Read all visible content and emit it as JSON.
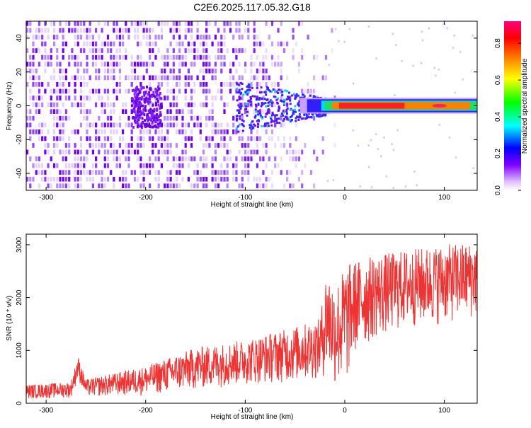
{
  "title": "C2E6.2025.117.05.32.G18",
  "chart_data": [
    {
      "type": "heatmap",
      "xlabel": "Height of straight line (km)",
      "ylabel": "Frequency (Hz)",
      "xlim": [
        -320,
        133
      ],
      "ylim": [
        -50,
        50
      ],
      "x_ticks": [
        -300,
        -200,
        -100,
        0,
        100
      ],
      "y_ticks": [
        -40,
        -20,
        0,
        20,
        40
      ],
      "colorbar": {
        "label": "Normalized spectral amplitude",
        "range": [
          0,
          0.92
        ],
        "ticks": [
          0.0,
          0.2,
          0.4,
          0.6,
          0.8
        ],
        "colormap": [
          "#ffffff",
          "#8000ff",
          "#0000ff",
          "#00ffff",
          "#00ff00",
          "#ffff00",
          "#ff8000",
          "#ff0000",
          "#ff0080"
        ]
      },
      "features": {
        "noise_region_x": [
          -320,
          -20
        ],
        "carrier_band_y": [
          -3,
          3
        ],
        "carrier_start_x": -45,
        "strong_carrier_x": [
          -20,
          133
        ],
        "peak_amplitude_near_x": 95
      }
    },
    {
      "type": "line",
      "xlabel": "Height of straight line (km)",
      "ylabel": "SNR (10 * v/v)",
      "xlim": [
        -320,
        133
      ],
      "ylim": [
        0,
        3200
      ],
      "x_ticks": [
        -300,
        -200,
        -100,
        0,
        100
      ],
      "y_ticks": [
        0,
        1000,
        2000,
        3000
      ],
      "color": "#ee3333",
      "envelope": {
        "x": [
          -320,
          -275,
          -268,
          -260,
          -200,
          -150,
          -100,
          -50,
          -25,
          -18,
          -10,
          0,
          10,
          30,
          60,
          100,
          133
        ],
        "low": [
          80,
          100,
          450,
          120,
          150,
          250,
          350,
          400,
          450,
          500,
          300,
          200,
          900,
          1200,
          1400,
          1500,
          1600
        ],
        "high": [
          350,
          400,
          900,
          450,
          700,
          1050,
          1200,
          1450,
          1600,
          2600,
          2200,
          2600,
          2700,
          2800,
          2900,
          3000,
          3050
        ]
      }
    }
  ]
}
